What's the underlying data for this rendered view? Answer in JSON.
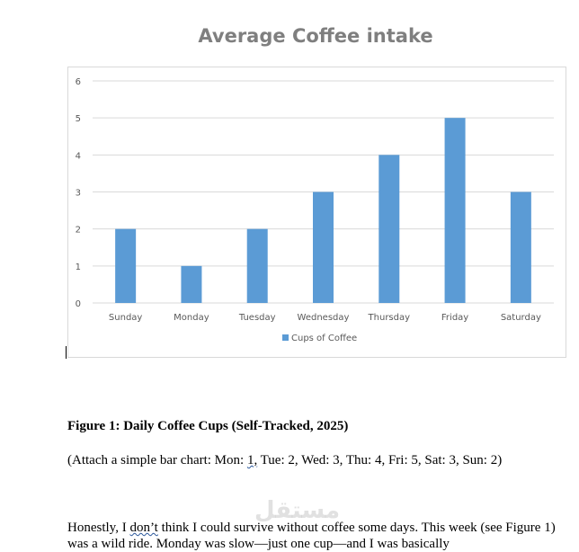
{
  "chart_data": {
    "type": "bar",
    "title": "Average Coffee intake",
    "categories": [
      "Sunday",
      "Monday",
      "Tuesday",
      "Wednesday",
      "Thursday",
      "Friday",
      "Saturday"
    ],
    "series": [
      {
        "name": "Cups of Coffee",
        "values": [
          2,
          1,
          2,
          3,
          4,
          5,
          3
        ]
      }
    ],
    "y_ticks": [
      "0",
      "1",
      "2",
      "3",
      "4",
      "5",
      "6"
    ],
    "ylim": [
      0,
      6
    ],
    "grid": true,
    "legend_position": "bottom",
    "bar_color": "#5b9bd5",
    "grid_color": "#d9d9d9",
    "axis_text_color": "#595959"
  },
  "document": {
    "figure_caption": "Figure 1: Daily Coffee Cups (Self-Tracked, 2025)",
    "attach_note_before": "(Attach a simple bar chart: Mon: ",
    "attach_note_flagged": "1,",
    "attach_note_after": " Tue: 2, Wed: 3, Thu: 4, Fri: 5, Sat: 3, Sun: 2)",
    "body_before": "Honestly, I ",
    "body_flagged": "don’t",
    "body_after": " think I could survive without coffee some days. This week (see Figure 1) was a wild ride. Monday was slow—just one cup—and I was basically",
    "watermark": "مستقل"
  }
}
